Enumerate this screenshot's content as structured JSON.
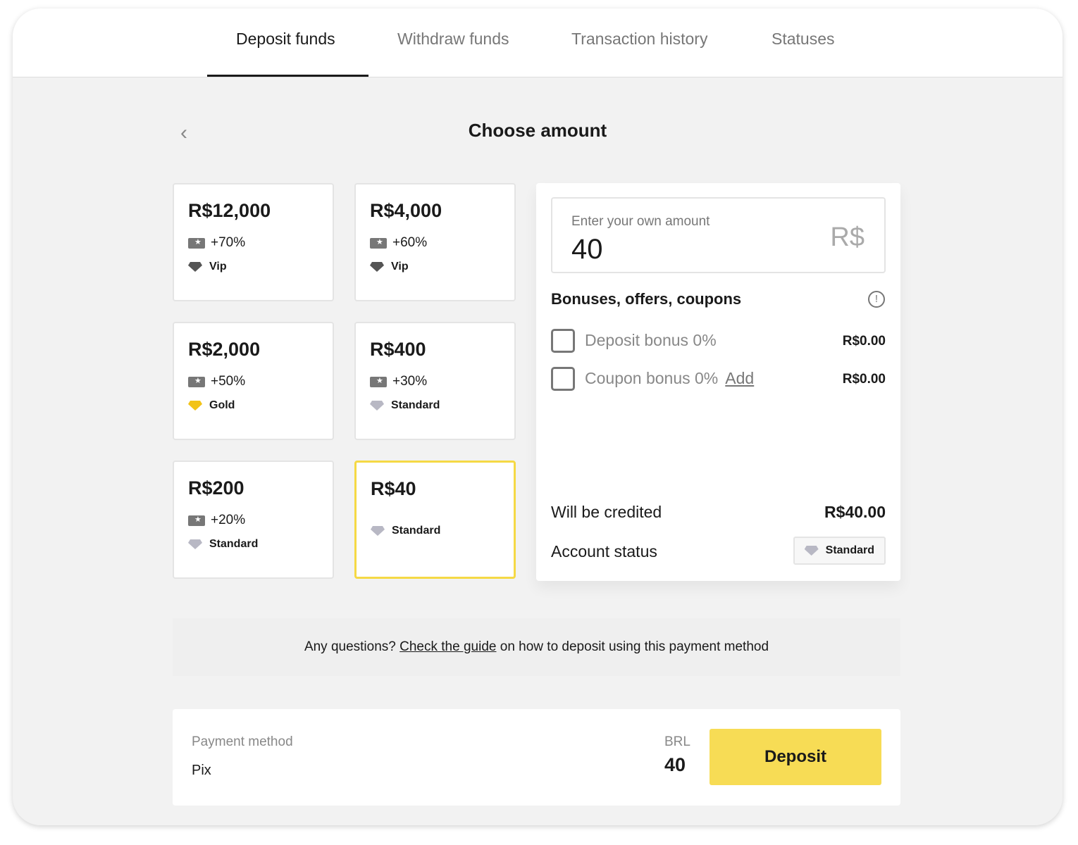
{
  "tabs": [
    "Deposit funds",
    "Withdraw funds",
    "Transaction history",
    "Statuses"
  ],
  "title": "Choose amount",
  "cards": [
    {
      "amount": "R$12,000",
      "bonus": "+70%",
      "level": "Vip"
    },
    {
      "amount": "R$4,000",
      "bonus": "+60%",
      "level": "Vip"
    },
    {
      "amount": "R$2,000",
      "bonus": "+50%",
      "level": "Gold"
    },
    {
      "amount": "R$400",
      "bonus": "+30%",
      "level": "Standard"
    },
    {
      "amount": "R$200",
      "bonus": "+20%",
      "level": "Standard"
    },
    {
      "amount": "R$40",
      "level": "Standard",
      "selected": true
    }
  ],
  "level_colors": {
    "Vip": "#555555",
    "Gold": "#f2c318",
    "Standard": "#b8b8c4"
  },
  "panel": {
    "input_label": "Enter your own amount",
    "input_value": "40",
    "currency": "R$",
    "bonuses_heading": "Bonuses, offers, coupons",
    "deposit_bonus": "Deposit bonus 0%",
    "deposit_bonus_value": "R$0.00",
    "coupon_bonus": "Coupon bonus 0%",
    "coupon_add": "Add",
    "coupon_bonus_value": "R$0.00",
    "credited_label": "Will be credited",
    "credited_value": "R$40.00",
    "status_label": "Account status",
    "status_value": "Standard"
  },
  "help": {
    "prefix": "Any questions?",
    "link": "Check the guide",
    "suffix": "on how to deposit using this payment method"
  },
  "payment": {
    "label": "Payment method",
    "method": "Pix",
    "currency": "BRL",
    "amount": "40",
    "deposit_label": "Deposit"
  },
  "accent": "#f7dc55"
}
